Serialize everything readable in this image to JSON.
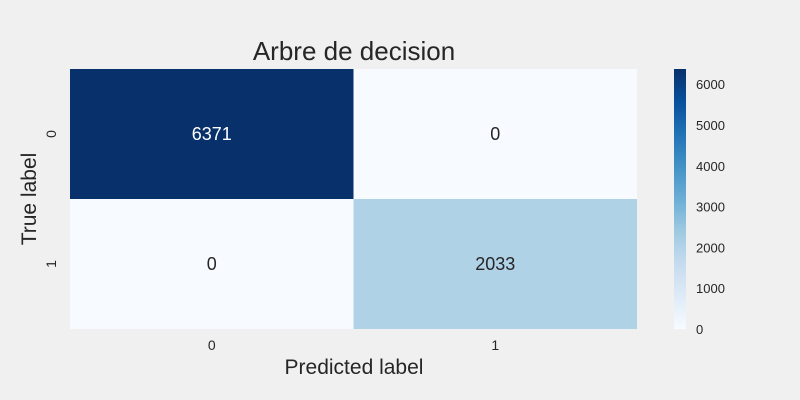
{
  "chart_data": {
    "type": "heatmap",
    "title": "Arbre de decision",
    "xlabel": "Predicted label",
    "ylabel": "True label",
    "x_categories": [
      "0",
      "1"
    ],
    "y_categories": [
      "0",
      "1"
    ],
    "values": [
      [
        6371,
        0
      ],
      [
        0,
        2033
      ]
    ],
    "colormap": "Blues",
    "vmin": 0,
    "vmax": 6371,
    "colorbar_ticks": [
      0,
      1000,
      2000,
      3000,
      4000,
      5000,
      6000
    ],
    "grid": false
  },
  "colors": {
    "background": "#f0f0f0",
    "low": "#f7fbff",
    "high": "#08306b",
    "text_dark": "#262626",
    "text_light": "#ffffff"
  }
}
